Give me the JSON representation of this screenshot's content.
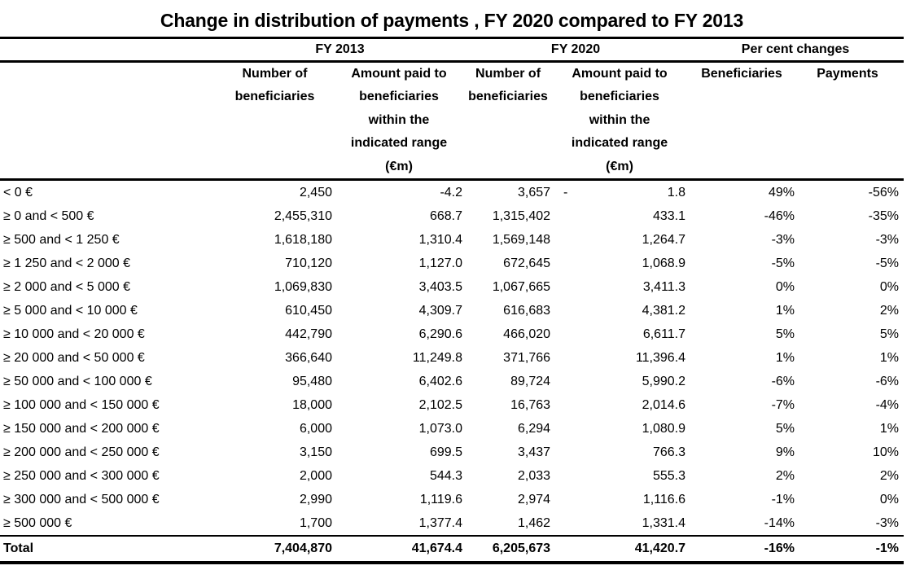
{
  "title": "Change in distribution of payments , FY 2020 compared to FY 2013",
  "chart_data": {
    "type": "table",
    "title": "Change in distribution of payments , FY 2020 compared to FY 2013",
    "group_headers": {
      "fy2013": "FY 2013",
      "fy2020": "FY 2020",
      "pct": "Per cent changes"
    },
    "column_headers": {
      "fy2013_beneficiaries": "Number of\nbeneficiaries",
      "fy2013_amount": "Amount paid to\nbeneficiaries\nwithin the\nindicated range\n(€m)",
      "fy2020_beneficiaries": "Number of\nbeneficiaries",
      "fy2020_amount": "Amount paid to\nbeneficiaries\nwithin the\nindicated range\n(€m)",
      "pct_beneficiaries": "Beneficiaries",
      "pct_payments": "Payments"
    },
    "rows": [
      {
        "label": "< 0 €",
        "fy2013_beneficiaries": "2,450",
        "fy2013_amount": "-4.2",
        "fy2020_beneficiaries": "3,657",
        "fy2020_amount_negative_sign": "-",
        "fy2020_amount": "1.8",
        "pct_beneficiaries": "49%",
        "pct_payments": "-56%"
      },
      {
        "label": "≥ 0 and < 500 €",
        "fy2013_beneficiaries": "2,455,310",
        "fy2013_amount": "668.7",
        "fy2020_beneficiaries": "1,315,402",
        "fy2020_amount": "433.1",
        "pct_beneficiaries": "-46%",
        "pct_payments": "-35%"
      },
      {
        "label": "≥ 500 and < 1 250 €",
        "fy2013_beneficiaries": "1,618,180",
        "fy2013_amount": "1,310.4",
        "fy2020_beneficiaries": "1,569,148",
        "fy2020_amount": "1,264.7",
        "pct_beneficiaries": "-3%",
        "pct_payments": "-3%"
      },
      {
        "label": "≥ 1 250 and < 2 000 €",
        "fy2013_beneficiaries": "710,120",
        "fy2013_amount": "1,127.0",
        "fy2020_beneficiaries": "672,645",
        "fy2020_amount": "1,068.9",
        "pct_beneficiaries": "-5%",
        "pct_payments": "-5%"
      },
      {
        "label": "≥ 2 000 and < 5 000 €",
        "fy2013_beneficiaries": "1,069,830",
        "fy2013_amount": "3,403.5",
        "fy2020_beneficiaries": "1,067,665",
        "fy2020_amount": "3,411.3",
        "pct_beneficiaries": "0%",
        "pct_payments": "0%"
      },
      {
        "label": "≥ 5 000 and < 10 000 €",
        "fy2013_beneficiaries": "610,450",
        "fy2013_amount": "4,309.7",
        "fy2020_beneficiaries": "616,683",
        "fy2020_amount": "4,381.2",
        "pct_beneficiaries": "1%",
        "pct_payments": "2%"
      },
      {
        "label": "≥ 10 000 and < 20 000 €",
        "fy2013_beneficiaries": "442,790",
        "fy2013_amount": "6,290.6",
        "fy2020_beneficiaries": "466,020",
        "fy2020_amount": "6,611.7",
        "pct_beneficiaries": "5%",
        "pct_payments": "5%"
      },
      {
        "label": "≥ 20 000 and < 50 000 €",
        "fy2013_beneficiaries": "366,640",
        "fy2013_amount": "11,249.8",
        "fy2020_beneficiaries": "371,766",
        "fy2020_amount": "11,396.4",
        "pct_beneficiaries": "1%",
        "pct_payments": "1%"
      },
      {
        "label": "≥ 50 000 and < 100 000 €",
        "fy2013_beneficiaries": "95,480",
        "fy2013_amount": "6,402.6",
        "fy2020_beneficiaries": "89,724",
        "fy2020_amount": "5,990.2",
        "pct_beneficiaries": "-6%",
        "pct_payments": "-6%"
      },
      {
        "label": "≥ 100 000 and < 150 000 €",
        "fy2013_beneficiaries": "18,000",
        "fy2013_amount": "2,102.5",
        "fy2020_beneficiaries": "16,763",
        "fy2020_amount": "2,014.6",
        "pct_beneficiaries": "-7%",
        "pct_payments": "-4%"
      },
      {
        "label": "≥ 150 000 and < 200 000 €",
        "fy2013_beneficiaries": "6,000",
        "fy2013_amount": "1,073.0",
        "fy2020_beneficiaries": "6,294",
        "fy2020_amount": "1,080.9",
        "pct_beneficiaries": "5%",
        "pct_payments": "1%"
      },
      {
        "label": "≥ 200 000 and < 250 000 €",
        "fy2013_beneficiaries": "3,150",
        "fy2013_amount": "699.5",
        "fy2020_beneficiaries": "3,437",
        "fy2020_amount": "766.3",
        "pct_beneficiaries": "9%",
        "pct_payments": "10%"
      },
      {
        "label": "≥ 250 000 and < 300 000 €",
        "fy2013_beneficiaries": "2,000",
        "fy2013_amount": "544.3",
        "fy2020_beneficiaries": "2,033",
        "fy2020_amount": "555.3",
        "pct_beneficiaries": "2%",
        "pct_payments": "2%"
      },
      {
        "label": "≥ 300 000 and < 500 000 €",
        "fy2013_beneficiaries": "2,990",
        "fy2013_amount": "1,119.6",
        "fy2020_beneficiaries": "2,974",
        "fy2020_amount": "1,116.6",
        "pct_beneficiaries": "-1%",
        "pct_payments": "0%"
      },
      {
        "label": "≥ 500 000 €",
        "fy2013_beneficiaries": "1,700",
        "fy2013_amount": "1,377.4",
        "fy2020_beneficiaries": "1,462",
        "fy2020_amount": "1,331.4",
        "pct_beneficiaries": "-14%",
        "pct_payments": "-3%"
      }
    ],
    "total": {
      "label": "Total",
      "fy2013_beneficiaries": "7,404,870",
      "fy2013_amount": "41,674.4",
      "fy2020_beneficiaries": "6,205,673",
      "fy2020_amount": "41,420.7",
      "pct_beneficiaries": "-16%",
      "pct_payments": "-1%"
    }
  }
}
